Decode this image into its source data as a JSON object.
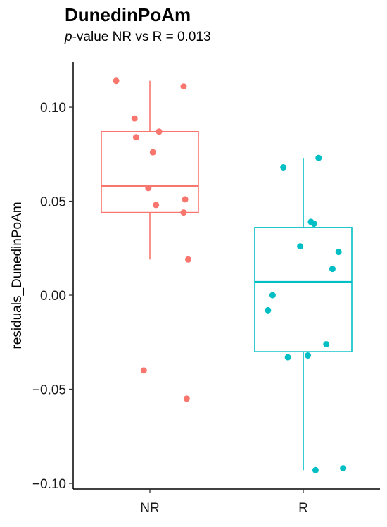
{
  "chart_data": {
    "type": "box",
    "title": "DunedinPoAm",
    "subtitle": {
      "italic_part": "p",
      "rest": "-value NR vs R = 0.013"
    },
    "xlabel": "",
    "ylabel": "residuals_DunedinPoAm",
    "ylim": [
      -0.103,
      0.124
    ],
    "yticks": [
      0.1,
      0.05,
      0.0,
      -0.05,
      -0.1
    ],
    "ytick_labels": [
      "0.10",
      "0.05",
      "0.00",
      "−0.05",
      "−0.10"
    ],
    "categories": [
      "NR",
      "R"
    ],
    "grid": false,
    "series": [
      {
        "category": "NR",
        "color": "#F8766D",
        "box": {
          "whisker_low": 0.019,
          "q1": 0.044,
          "median": 0.058,
          "q3": 0.087,
          "whisker_high": 0.114
        },
        "points": [
          {
            "dx": -0.22,
            "y": 0.114
          },
          {
            "dx": 0.22,
            "y": 0.111
          },
          {
            "dx": -0.1,
            "y": 0.094
          },
          {
            "dx": 0.06,
            "y": 0.087
          },
          {
            "dx": -0.09,
            "y": 0.084
          },
          {
            "dx": 0.02,
            "y": 0.076
          },
          {
            "dx": -0.01,
            "y": 0.057
          },
          {
            "dx": 0.23,
            "y": 0.051
          },
          {
            "dx": 0.04,
            "y": 0.048
          },
          {
            "dx": 0.22,
            "y": 0.044
          },
          {
            "dx": 0.25,
            "y": 0.019
          },
          {
            "dx": -0.04,
            "y": -0.04
          },
          {
            "dx": 0.24,
            "y": -0.055
          }
        ]
      },
      {
        "category": "R",
        "color": "#00BFC4",
        "box": {
          "whisker_low": -0.093,
          "q1": -0.03,
          "median": 0.007,
          "q3": 0.036,
          "whisker_high": 0.073
        },
        "points": [
          {
            "dx": 0.1,
            "y": 0.073
          },
          {
            "dx": -0.13,
            "y": 0.068
          },
          {
            "dx": 0.05,
            "y": 0.039
          },
          {
            "dx": 0.07,
            "y": 0.038
          },
          {
            "dx": -0.02,
            "y": 0.026
          },
          {
            "dx": 0.23,
            "y": 0.023
          },
          {
            "dx": 0.19,
            "y": 0.014
          },
          {
            "dx": -0.2,
            "y": 0.0
          },
          {
            "dx": -0.23,
            "y": -0.008
          },
          {
            "dx": 0.15,
            "y": -0.026
          },
          {
            "dx": -0.1,
            "y": -0.033
          },
          {
            "dx": 0.03,
            "y": -0.032
          },
          {
            "dx": 0.08,
            "y": -0.093
          },
          {
            "dx": 0.26,
            "y": -0.092
          }
        ]
      }
    ]
  }
}
